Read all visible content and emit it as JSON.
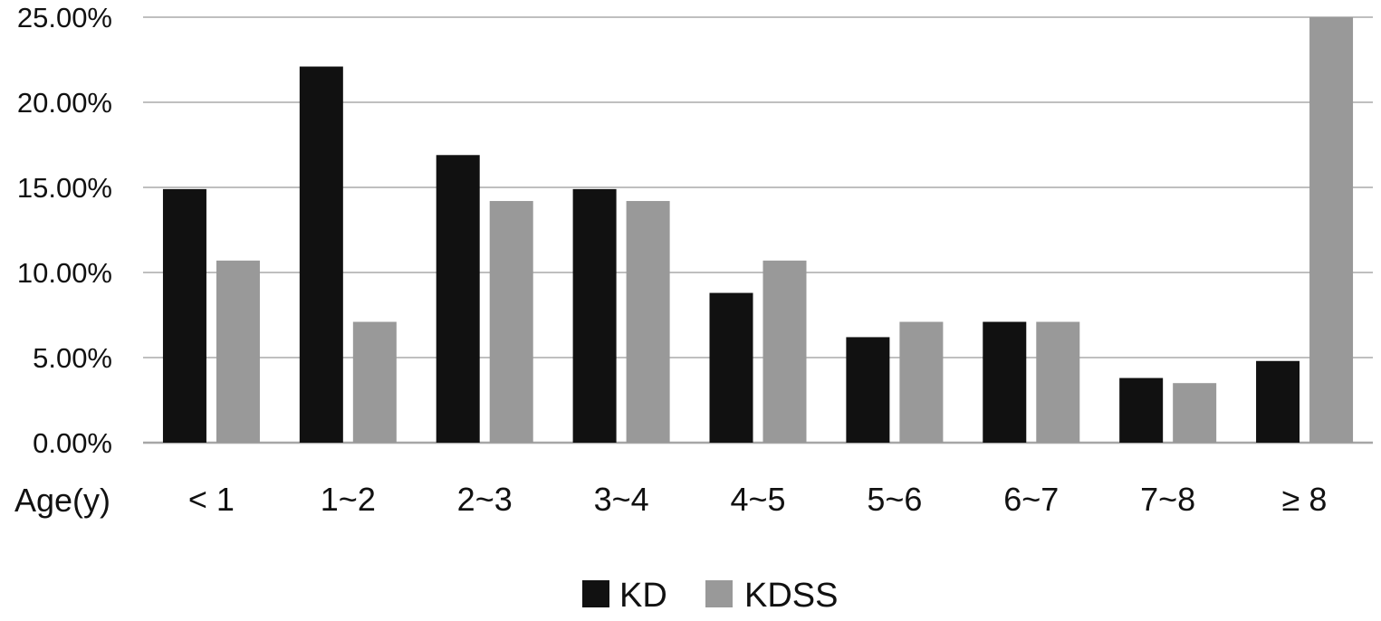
{
  "chart_data": {
    "type": "bar",
    "categories": [
      "< 1",
      "1~2",
      "2~3",
      "3~4",
      "4~5",
      "5~6",
      "6~7",
      "7~8",
      "≥ 8"
    ],
    "series": [
      {
        "name": "KD",
        "color": "#111111",
        "values": [
          14.9,
          22.1,
          16.9,
          14.9,
          8.8,
          6.2,
          7.1,
          3.8,
          4.8
        ]
      },
      {
        "name": "KDSS",
        "color": "#999999",
        "values": [
          10.7,
          7.1,
          14.2,
          14.2,
          10.7,
          7.1,
          7.1,
          3.5,
          25.0
        ]
      }
    ],
    "title": "",
    "xlabel": "Age(y)",
    "ylabel": "",
    "ylim": [
      0,
      25
    ],
    "yticks": [
      "0.00%",
      "5.00%",
      "10.00%",
      "15.00%",
      "20.00%",
      "25.00%"
    ],
    "grid": true,
    "legend": "bottom-center"
  }
}
